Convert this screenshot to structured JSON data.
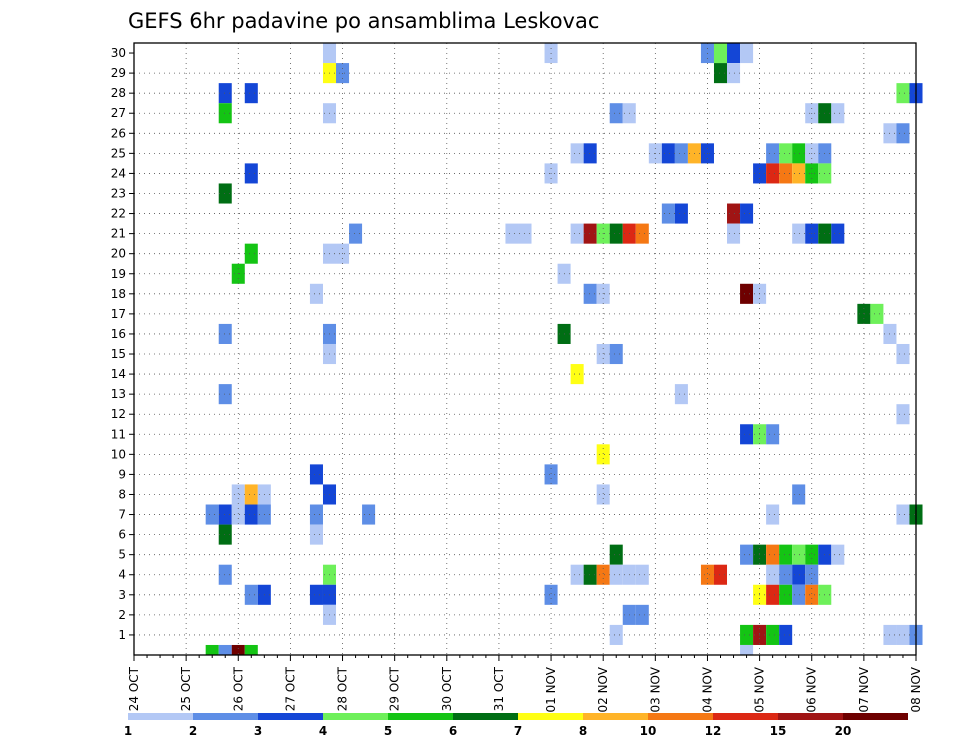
{
  "chart_data": {
    "type": "heatmap",
    "title": "GEFS 6hr padavine po ansamblima Leskovac",
    "x_ticks": [
      "24 OCT",
      "25 OCT",
      "26 OCT",
      "27 OCT",
      "28 OCT",
      "29 OCT",
      "30 OCT",
      "31 OCT",
      "01 NOV",
      "02 NOV",
      "03 NOV",
      "04 NOV",
      "05 NOV",
      "06 NOV",
      "07 NOV",
      "08 NOV"
    ],
    "y_ticks": [
      "1",
      "2",
      "3",
      "4",
      "5",
      "6",
      "7",
      "8",
      "9",
      "10",
      "11",
      "12",
      "13",
      "14",
      "15",
      "16",
      "17",
      "18",
      "19",
      "20",
      "21",
      "22",
      "23",
      "24",
      "25",
      "26",
      "27",
      "28",
      "29",
      "30"
    ],
    "x_range_steps": [
      0,
      60
    ],
    "steps_per_day": 4,
    "grid": true,
    "colorbar": {
      "labels": [
        "1",
        "2",
        "3",
        "4",
        "5",
        "6",
        "7",
        "8",
        "10",
        "12",
        "15",
        "20"
      ],
      "colors": [
        "#b3c8f5",
        "#5e8ee6",
        "#1446d6",
        "#6ef05a",
        "#14c414",
        "#006e14",
        "#ffff14",
        "#ffb428",
        "#f57814",
        "#dc2814",
        "#a01414",
        "#6e0000"
      ]
    },
    "cells": [
      {
        "m": 30,
        "s": [
          [
            15,
            1
          ],
          [
            32,
            1
          ],
          [
            44,
            2
          ],
          [
            45,
            4
          ],
          [
            46,
            3
          ],
          [
            47,
            1
          ]
        ]
      },
      {
        "m": 29,
        "s": [
          [
            15,
            7
          ],
          [
            16,
            2
          ],
          [
            45,
            6
          ],
          [
            46,
            1
          ]
        ]
      },
      {
        "m": 28,
        "s": [
          [
            7,
            3
          ],
          [
            9,
            3
          ],
          [
            59,
            4
          ],
          [
            60,
            3
          ]
        ]
      },
      {
        "m": 27,
        "s": [
          [
            7,
            5
          ],
          [
            15,
            1
          ],
          [
            37,
            2
          ],
          [
            38,
            1
          ],
          [
            52,
            1
          ],
          [
            53,
            6
          ],
          [
            54,
            1
          ]
        ]
      },
      {
        "m": 26,
        "s": [
          [
            58,
            1
          ],
          [
            59,
            2
          ]
        ]
      },
      {
        "m": 25,
        "s": [
          [
            34,
            1
          ],
          [
            35,
            3
          ],
          [
            40,
            1
          ],
          [
            41,
            3
          ],
          [
            42,
            2
          ],
          [
            43,
            8
          ],
          [
            44,
            3
          ],
          [
            49,
            2
          ],
          [
            50,
            4
          ],
          [
            51,
            5
          ],
          [
            52,
            1
          ],
          [
            53,
            2
          ]
        ]
      },
      {
        "m": 24,
        "s": [
          [
            9,
            3
          ],
          [
            32,
            1
          ],
          [
            48,
            3
          ],
          [
            49,
            10
          ],
          [
            50,
            9
          ],
          [
            51,
            8
          ],
          [
            52,
            5
          ],
          [
            53,
            4
          ]
        ]
      },
      {
        "m": 23,
        "s": [
          [
            7,
            6
          ]
        ]
      },
      {
        "m": 22,
        "s": [
          [
            41,
            2
          ],
          [
            42,
            3
          ],
          [
            46,
            11
          ],
          [
            47,
            3
          ]
        ]
      },
      {
        "m": 21,
        "s": [
          [
            17,
            2
          ],
          [
            29,
            1
          ],
          [
            30,
            1
          ],
          [
            34,
            1
          ],
          [
            35,
            11
          ],
          [
            36,
            4
          ],
          [
            37,
            6
          ],
          [
            38,
            10
          ],
          [
            39,
            9
          ],
          [
            46,
            1
          ],
          [
            51,
            1
          ],
          [
            52,
            3
          ],
          [
            53,
            6
          ],
          [
            54,
            3
          ]
        ]
      },
      {
        "m": 20,
        "s": [
          [
            9,
            5
          ],
          [
            15,
            1
          ],
          [
            16,
            1
          ]
        ]
      },
      {
        "m": 19,
        "s": [
          [
            8,
            5
          ],
          [
            33,
            1
          ]
        ]
      },
      {
        "m": 18,
        "s": [
          [
            14,
            1
          ],
          [
            35,
            2
          ],
          [
            36,
            1
          ],
          [
            47,
            12
          ],
          [
            48,
            1
          ]
        ]
      },
      {
        "m": 17,
        "s": [
          [
            56,
            6
          ],
          [
            57,
            4
          ]
        ]
      },
      {
        "m": 16,
        "s": [
          [
            7,
            2
          ],
          [
            15,
            2
          ],
          [
            33,
            6
          ],
          [
            58,
            1
          ]
        ]
      },
      {
        "m": 15,
        "s": [
          [
            15,
            1
          ],
          [
            36,
            1
          ],
          [
            37,
            2
          ],
          [
            59,
            1
          ]
        ]
      },
      {
        "m": 14,
        "s": [
          [
            34,
            7
          ]
        ]
      },
      {
        "m": 13,
        "s": [
          [
            7,
            2
          ],
          [
            42,
            1
          ]
        ]
      },
      {
        "m": 12,
        "s": [
          [
            59,
            1
          ]
        ]
      },
      {
        "m": 11,
        "s": [
          [
            47,
            3
          ],
          [
            48,
            4
          ],
          [
            49,
            2
          ]
        ]
      },
      {
        "m": 10,
        "s": [
          [
            36,
            7
          ]
        ]
      },
      {
        "m": 9,
        "s": [
          [
            14,
            3
          ],
          [
            32,
            2
          ]
        ]
      },
      {
        "m": 8,
        "s": [
          [
            8,
            1
          ],
          [
            9,
            8
          ],
          [
            10,
            1
          ],
          [
            15,
            3
          ],
          [
            36,
            1
          ],
          [
            51,
            2
          ]
        ]
      },
      {
        "m": 7,
        "s": [
          [
            6,
            2
          ],
          [
            7,
            3
          ],
          [
            8,
            1
          ],
          [
            9,
            3
          ],
          [
            10,
            2
          ],
          [
            14,
            2
          ],
          [
            18,
            2
          ],
          [
            49,
            1
          ],
          [
            59,
            1
          ],
          [
            60,
            6
          ]
        ]
      },
      {
        "m": 6,
        "s": [
          [
            7,
            6
          ],
          [
            14,
            1
          ]
        ]
      },
      {
        "m": 5,
        "s": [
          [
            37,
            6
          ],
          [
            47,
            2
          ],
          [
            48,
            6
          ],
          [
            49,
            9
          ],
          [
            50,
            5
          ],
          [
            51,
            4
          ],
          [
            52,
            5
          ],
          [
            53,
            3
          ],
          [
            54,
            1
          ]
        ]
      },
      {
        "m": 4,
        "s": [
          [
            7,
            2
          ],
          [
            15,
            4
          ],
          [
            34,
            1
          ],
          [
            35,
            6
          ],
          [
            36,
            9
          ],
          [
            37,
            1
          ],
          [
            38,
            1
          ],
          [
            39,
            1
          ],
          [
            44,
            9
          ],
          [
            45,
            10
          ],
          [
            49,
            1
          ],
          [
            50,
            2
          ],
          [
            51,
            3
          ],
          [
            52,
            2
          ]
        ]
      },
      {
        "m": 3,
        "s": [
          [
            9,
            2
          ],
          [
            10,
            3
          ],
          [
            14,
            3
          ],
          [
            15,
            3
          ],
          [
            32,
            2
          ],
          [
            48,
            7
          ],
          [
            49,
            10
          ],
          [
            50,
            5
          ],
          [
            51,
            2
          ],
          [
            52,
            9
          ],
          [
            53,
            4
          ]
        ]
      },
      {
        "m": 2,
        "s": [
          [
            15,
            1
          ],
          [
            38,
            2
          ],
          [
            39,
            2
          ]
        ]
      },
      {
        "m": 1,
        "s": [
          [
            37,
            1
          ],
          [
            47,
            5
          ],
          [
            48,
            11
          ],
          [
            49,
            5
          ],
          [
            50,
            3
          ],
          [
            58,
            1
          ],
          [
            59,
            1
          ],
          [
            60,
            2
          ]
        ]
      },
      {
        "m": 0,
        "s": [
          [
            6,
            5
          ],
          [
            7,
            2
          ],
          [
            8,
            12
          ],
          [
            9,
            5
          ],
          [
            47,
            1
          ]
        ]
      }
    ]
  }
}
